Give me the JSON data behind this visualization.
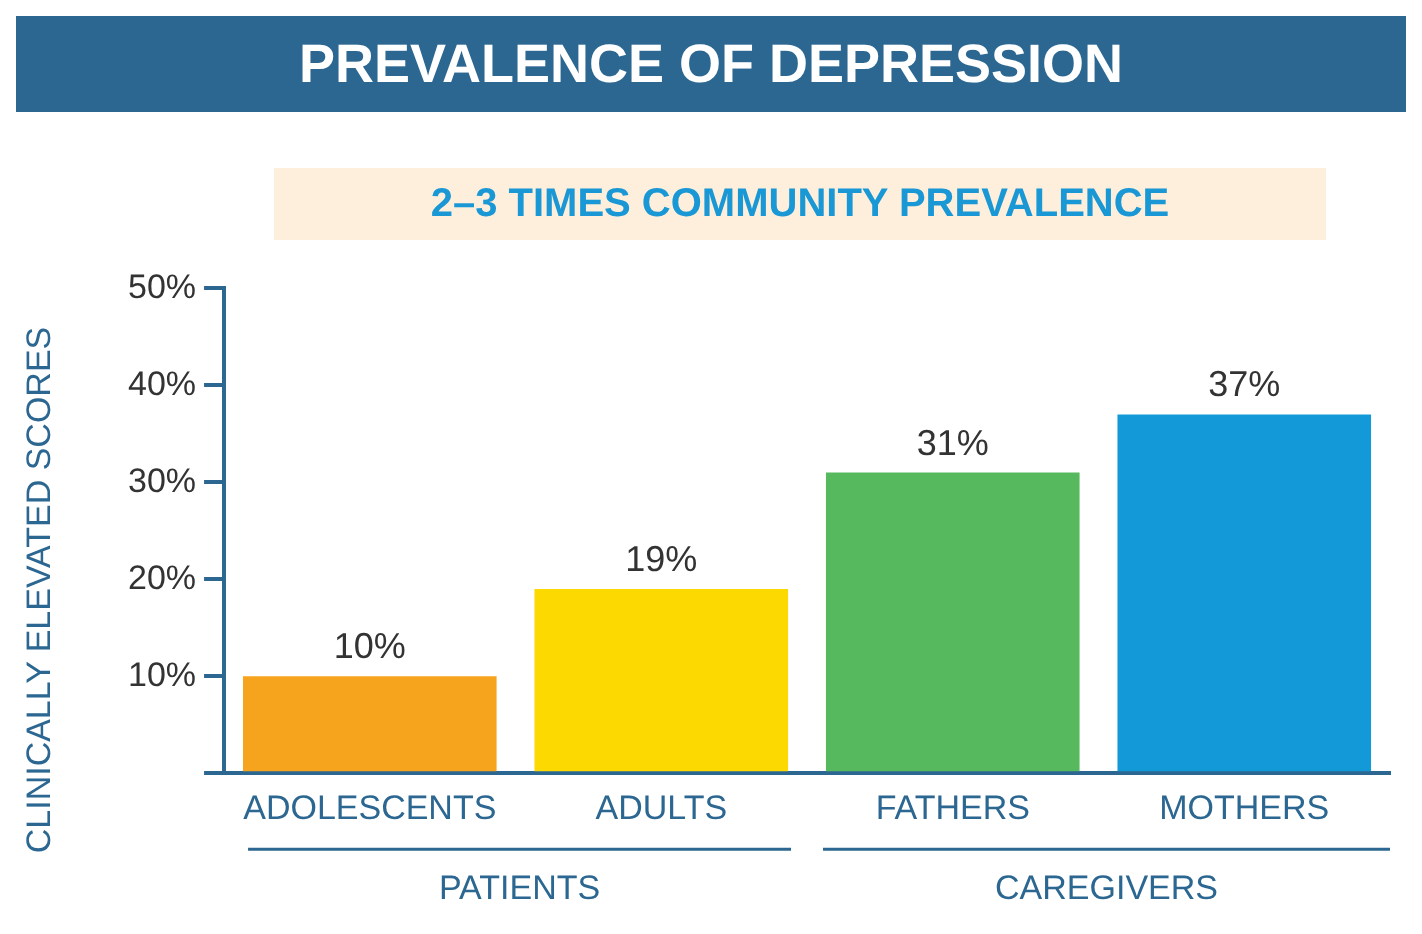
{
  "chart_data": {
    "type": "bar",
    "title": "PREVALENCE OF DEPRESSION",
    "subtitle": "2–3 TIMES COMMUNITY PREVALENCE",
    "ylabel": "CLINICALLY ELEVATED SCORES",
    "categories": [
      "ADOLESCENTS",
      "ADULTS",
      "FATHERS",
      "MOTHERS"
    ],
    "values": [
      10,
      19,
      31,
      37
    ],
    "colors": [
      "#f6a41e",
      "#fcd900",
      "#56b95d",
      "#1399d8"
    ],
    "value_labels": [
      "10%",
      "19%",
      "31%",
      "37%"
    ],
    "ylim": [
      0,
      50
    ],
    "yticks": [
      {
        "value": 0,
        "label": null
      },
      {
        "value": 10,
        "label": "10%"
      },
      {
        "value": 20,
        "label": "20%"
      },
      {
        "value": 30,
        "label": "30%"
      },
      {
        "value": 40,
        "label": "40%"
      },
      {
        "value": 50,
        "label": "50%"
      }
    ],
    "grid": false,
    "legend": false,
    "annotations": [
      "PATIENTS",
      "CAREGIVERS"
    ]
  }
}
